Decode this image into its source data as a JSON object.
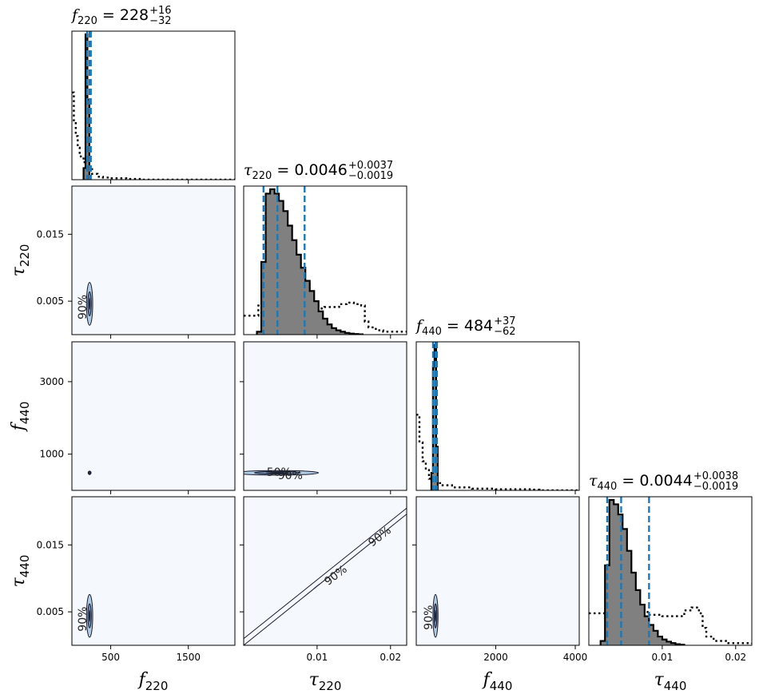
{
  "chart_data": {
    "type": "corner",
    "parameters": [
      {
        "key": "f220",
        "symbol": "f",
        "sub": "220",
        "title_value": "228",
        "title_plus": "+16",
        "title_minus": "−32",
        "range": [
          0,
          2100
        ],
        "ticks": [
          500,
          1500
        ],
        "tick_labels": [
          "500",
          "1500"
        ],
        "quantiles": [
          196,
          228,
          244
        ]
      },
      {
        "key": "tau220",
        "symbol": "τ",
        "sub": "220",
        "title_value": "0.0046",
        "title_plus": "+0.0037",
        "title_minus": "−0.0019",
        "range": [
          0.0,
          0.0222
        ],
        "ticks": [
          0.01,
          0.02
        ],
        "tick_labels": [
          "0.01",
          "0.02"
        ],
        "y_ticks": [
          0.005,
          0.015
        ],
        "y_tick_labels": [
          "0.005",
          "0.015"
        ],
        "quantiles": [
          0.0027,
          0.0046,
          0.0083
        ]
      },
      {
        "key": "f440",
        "symbol": "f",
        "sub": "440",
        "title_value": "484",
        "title_plus": "+37",
        "title_minus": "−62",
        "range": [
          0,
          4100
        ],
        "ticks": [
          2000,
          4000
        ],
        "tick_labels": [
          "2000",
          "4000"
        ],
        "y_ticks": [
          1000,
          3000
        ],
        "y_tick_labels": [
          "1000",
          "3000"
        ],
        "quantiles": [
          422,
          484,
          521
        ]
      },
      {
        "key": "tau440",
        "symbol": "τ",
        "sub": "440",
        "title_value": "0.0044",
        "title_plus": "+0.0038",
        "title_minus": "−0.0019",
        "range": [
          0.0,
          0.0222
        ],
        "ticks": [
          0.01,
          0.02
        ],
        "tick_labels": [
          "0.01",
          "0.02"
        ],
        "y_ticks": [
          0.005,
          0.015
        ],
        "y_tick_labels": [
          "0.005",
          "0.015"
        ],
        "quantiles": [
          0.0025,
          0.0044,
          0.0082
        ]
      }
    ],
    "histograms": {
      "f220": {
        "posterior": {
          "edges_start": 150,
          "bin_width": 25,
          "density": [
            0.08,
            1.0,
            0.55
          ]
        },
        "prior": {
          "x": [
            0,
            25,
            50,
            75,
            100,
            150,
            200,
            260,
            330,
            400,
            500,
            700,
            900
          ],
          "density": [
            0.6,
            0.4,
            0.3,
            0.22,
            0.16,
            0.12,
            0.08,
            0.04,
            0.02,
            0.015,
            0.01,
            0.005,
            0.0
          ]
        }
      },
      "tau220": {
        "posterior": {
          "edges_start": 0.0018,
          "bin_width": 0.0006,
          "density": [
            0.02,
            0.5,
            0.97,
            1.0,
            0.97,
            0.92,
            0.85,
            0.75,
            0.65,
            0.55,
            0.46,
            0.37,
            0.3,
            0.23,
            0.16,
            0.11,
            0.07,
            0.045,
            0.03,
            0.02,
            0.012,
            0.007,
            0.004,
            0.002
          ]
        },
        "prior": {
          "x": [
            0.0,
            0.002,
            0.004,
            0.006,
            0.008,
            0.009,
            0.011,
            0.013,
            0.014,
            0.015,
            0.016,
            0.0165,
            0.017,
            0.018,
            0.019,
            0.0222
          ],
          "density": [
            0.13,
            0.2,
            0.21,
            0.22,
            0.21,
            0.18,
            0.19,
            0.21,
            0.22,
            0.21,
            0.2,
            0.09,
            0.05,
            0.03,
            0.02,
            0.02
          ]
        }
      },
      "f440": {
        "posterior": {
          "edges_start": 380,
          "bin_width": 40,
          "density": [
            0.12,
            0.85,
            1.0,
            0.3
          ]
        },
        "prior": {
          "x": [
            0,
            80,
            160,
            240,
            320,
            420,
            600,
            900,
            1400,
            2000,
            2900,
            3100
          ],
          "density": [
            0.52,
            0.33,
            0.2,
            0.14,
            0.08,
            0.05,
            0.035,
            0.02,
            0.012,
            0.008,
            0.005,
            0.0
          ]
        }
      },
      "tau440": {
        "posterior": {
          "edges_start": 0.0016,
          "bin_width": 0.0006,
          "density": [
            0.03,
            0.55,
            1.0,
            0.97,
            0.9,
            0.8,
            0.65,
            0.5,
            0.38,
            0.28,
            0.2,
            0.14,
            0.1,
            0.06,
            0.04,
            0.025,
            0.015,
            0.008,
            0.004
          ]
        },
        "prior": {
          "x": [
            0.0,
            0.002,
            0.004,
            0.006,
            0.008,
            0.01,
            0.012,
            0.013,
            0.014,
            0.015,
            0.0155,
            0.016,
            0.017,
            0.019,
            0.0222
          ],
          "density": [
            0.22,
            0.22,
            0.24,
            0.23,
            0.21,
            0.2,
            0.2,
            0.24,
            0.26,
            0.22,
            0.12,
            0.06,
            0.03,
            0.015,
            0.01
          ]
        }
      }
    },
    "pair_contours": [
      {
        "row": 1,
        "col": 0,
        "center": [
          228,
          0.0046
        ],
        "spread": [
          25,
          0.002
        ],
        "labels": [
          "90%"
        ]
      },
      {
        "row": 2,
        "col": 0,
        "center": [
          228,
          484
        ],
        "spread": [
          12,
          30
        ],
        "labels": []
      },
      {
        "row": 2,
        "col": 1,
        "center": [
          0.0046,
          484
        ],
        "spread": [
          0.0035,
          40
        ],
        "labels": [
          "50%",
          "90%"
        ]
      },
      {
        "row": 3,
        "col": 0,
        "center": [
          228,
          0.0044
        ],
        "spread": [
          25,
          0.002
        ],
        "labels": [
          "90%"
        ]
      },
      {
        "row": 3,
        "col": 1,
        "diagonal_band": {
          "lower": [
            [
              0.0,
              0.0
            ],
            [
              0.0222,
              0.0196
            ]
          ],
          "upper": [
            [
              0.0,
              0.001
            ],
            [
              0.0222,
              0.0205
            ]
          ]
        },
        "labels": [
          "90%",
          "90%"
        ]
      },
      {
        "row": 3,
        "col": 2,
        "center": [
          484,
          0.0044
        ],
        "spread": [
          40,
          0.002
        ],
        "labels": [
          "90%"
        ]
      }
    ],
    "colors": {
      "posterior_fill": "#808080",
      "posterior_edge": "#000000",
      "quantile_line": "#1f77b4",
      "prior_line": "#000000",
      "density_background": "#f5f9fe",
      "contour_fill": "#b3cde3",
      "contour_line": "#1a1a2e"
    }
  }
}
